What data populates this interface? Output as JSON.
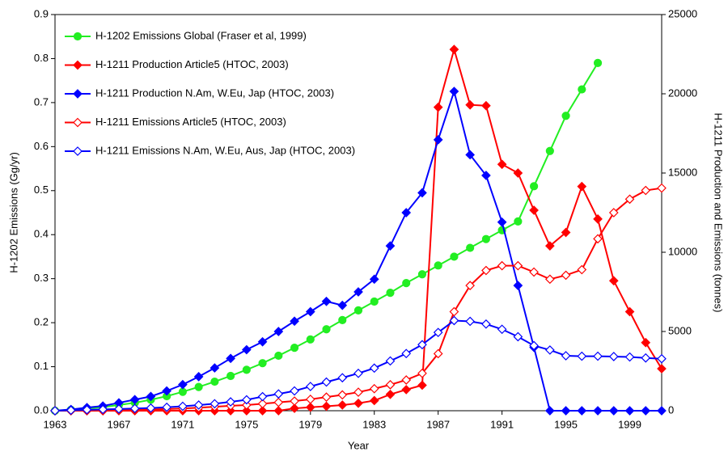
{
  "chart_data": {
    "type": "line",
    "x_label": "Year",
    "y_label": "H-1202 Emissions (Gg/yr)",
    "y2_label": "H-1211 Production and Emissions (tonnes)",
    "x": [
      1963,
      1964,
      1965,
      1966,
      1967,
      1968,
      1969,
      1970,
      1971,
      1972,
      1973,
      1974,
      1975,
      1976,
      1977,
      1978,
      1979,
      1980,
      1981,
      1982,
      1983,
      1984,
      1985,
      1986,
      1987,
      1988,
      1989,
      1990,
      1991,
      1992,
      1993,
      1994,
      1995,
      1996,
      1997,
      1998,
      1999,
      2000,
      2001
    ],
    "xlim": [
      1963,
      2001
    ],
    "xticks": [
      1963,
      1967,
      1971,
      1975,
      1979,
      1983,
      1987,
      1991,
      1995,
      1999
    ],
    "ylim": [
      0,
      0.9
    ],
    "yticks": [
      {
        "value": 0,
        "label": "0.0"
      },
      {
        "value": 0.1,
        "label": "0.1"
      },
      {
        "value": 0.2,
        "label": "0.2"
      },
      {
        "value": 0.3,
        "label": "0.3"
      },
      {
        "value": 0.4,
        "label": "0.4"
      },
      {
        "value": 0.5,
        "label": "0.5"
      },
      {
        "value": 0.6,
        "label": "0.6"
      },
      {
        "value": 0.7,
        "label": "0.7"
      },
      {
        "value": 0.8,
        "label": "0.8"
      },
      {
        "value": 0.9,
        "label": "0.9"
      }
    ],
    "y2lim": [
      0,
      25000
    ],
    "y2ticks": [
      0,
      5000,
      10000,
      15000,
      20000,
      25000
    ],
    "grid": false,
    "legend": "upper left",
    "series": [
      {
        "name": "H-1202 Emissions Global (Fraser et al, 1999)",
        "color": "#22ee22",
        "marker": "circle",
        "filled": true,
        "values": [
          0,
          0.002,
          0.005,
          0.008,
          0.013,
          0.018,
          0.025,
          0.033,
          0.043,
          0.054,
          0.066,
          0.079,
          0.093,
          0.108,
          0.125,
          0.143,
          0.162,
          0.185,
          0.206,
          0.228,
          0.248,
          0.268,
          0.29,
          0.31,
          0.33,
          0.35,
          0.37,
          0.39,
          0.41,
          0.43,
          0.51,
          0.59,
          0.67,
          0.73,
          0.79,
          null,
          null,
          null,
          null
        ]
      },
      {
        "name": "H-1211 Production Article5 (HTOC, 2003)",
        "color": "#ff0000",
        "marker": "diamond",
        "filled": true,
        "axis": "y2",
        "values": [
          0,
          0,
          0,
          0,
          0,
          0,
          0,
          0,
          0,
          0,
          0,
          0,
          0,
          0,
          0,
          150,
          220,
          280,
          360,
          470,
          640,
          1030,
          1330,
          1610,
          19150,
          22800,
          19300,
          19250,
          15550,
          15000,
          12650,
          10400,
          11250,
          14150,
          12100,
          8200,
          6250,
          4300,
          2650
        ]
      },
      {
        "name": "H-1211 Production N.Am, W.Eu, Jap (HTOC, 2003)",
        "color": "#0000ff",
        "marker": "diamond",
        "filled": true,
        "axis": "y2",
        "values": [
          0,
          80,
          200,
          300,
          500,
          700,
          900,
          1250,
          1650,
          2150,
          2700,
          3300,
          3850,
          4350,
          5000,
          5650,
          6250,
          6900,
          6650,
          7500,
          8300,
          10400,
          12500,
          13750,
          17100,
          20150,
          16150,
          14850,
          11900,
          7900,
          4000,
          0,
          0,
          0,
          0,
          0,
          0,
          0,
          0
        ]
      },
      {
        "name": "H-1211 Emissions Article5 (HTOC, 2003)",
        "color": "#ff0000",
        "marker": "diamond",
        "filled": false,
        "axis": "y2",
        "values": [
          0,
          0,
          0,
          0,
          30,
          60,
          80,
          110,
          140,
          190,
          250,
          310,
          360,
          440,
          530,
          610,
          720,
          860,
          1000,
          1170,
          1390,
          1640,
          1940,
          2360,
          3600,
          6250,
          7900,
          8850,
          9150,
          9150,
          8750,
          8300,
          8550,
          8900,
          10850,
          12500,
          13350,
          13900,
          14050
        ]
      },
      {
        "name": "H-1211 Emissions N.Am, W.Eu, Aus, Jap (HTOC, 2003)",
        "color": "#0000ff",
        "marker": "diamond",
        "filled": false,
        "axis": "y2",
        "values": [
          0,
          30,
          60,
          80,
          110,
          140,
          170,
          220,
          280,
          360,
          440,
          560,
          690,
          890,
          1060,
          1250,
          1530,
          1810,
          2080,
          2360,
          2690,
          3140,
          3610,
          4170,
          4940,
          5690,
          5640,
          5470,
          5140,
          4670,
          4110,
          3830,
          3470,
          3440,
          3440,
          3420,
          3390,
          3330,
          3280
        ]
      }
    ]
  }
}
